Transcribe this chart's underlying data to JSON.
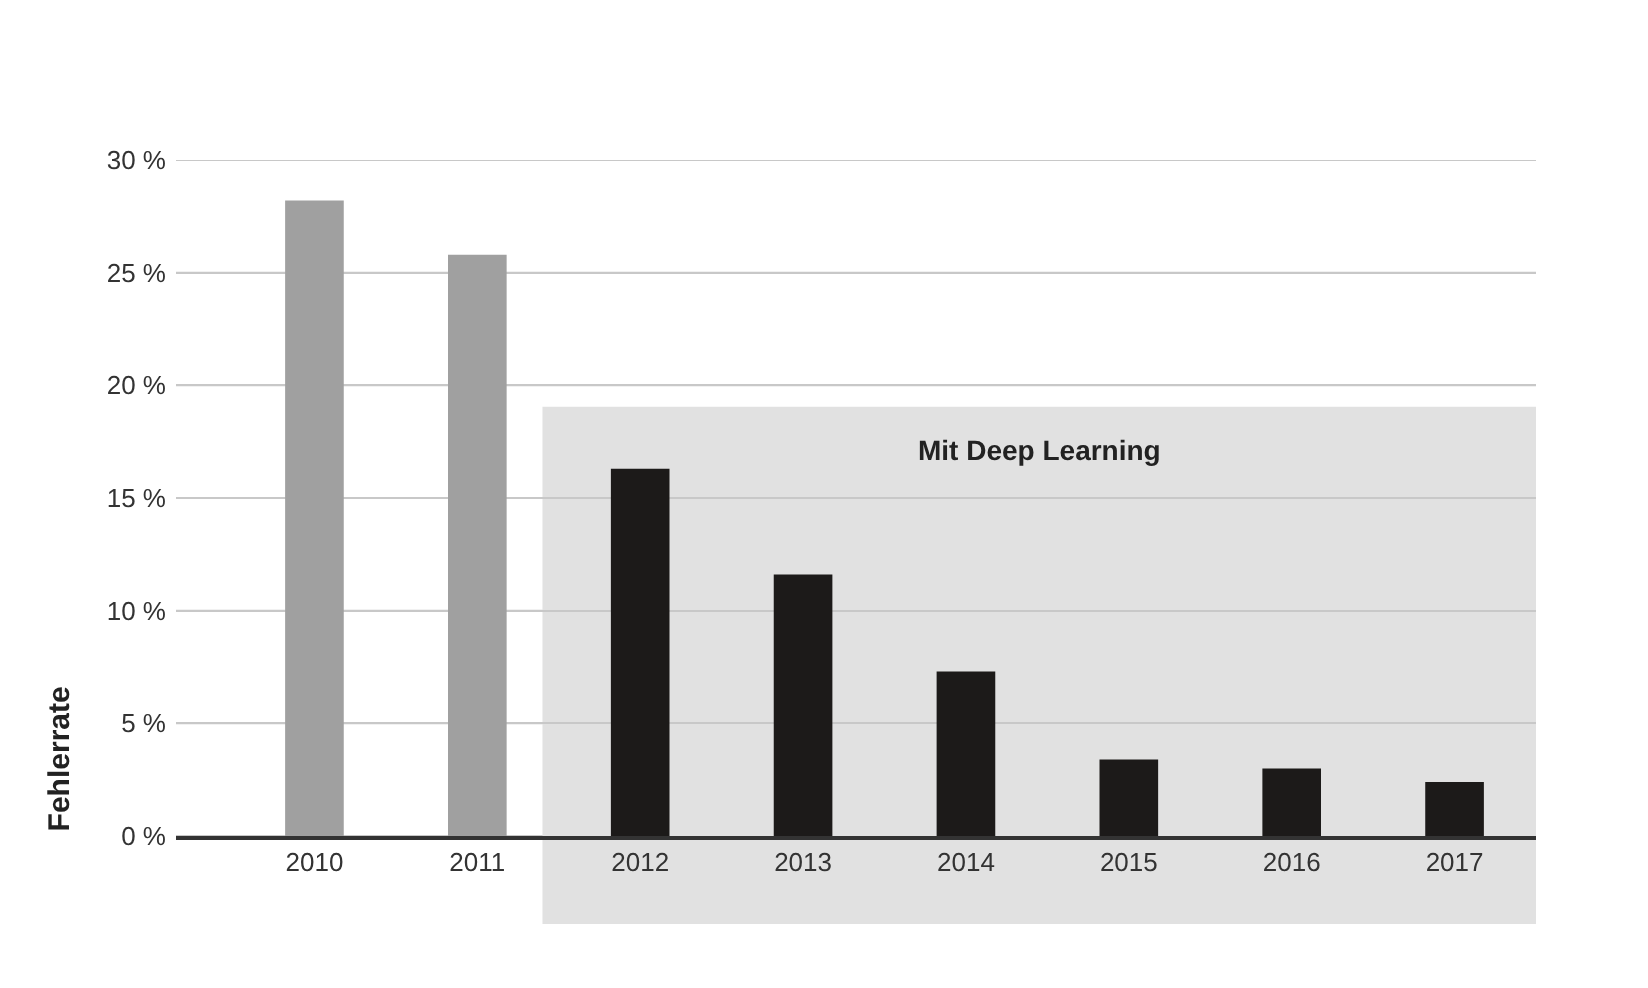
{
  "chart_data": {
    "type": "bar",
    "ylabel": "Fehlerrate",
    "categories": [
      "2010",
      "2011",
      "2012",
      "2013",
      "2014",
      "2015",
      "2016",
      "2017"
    ],
    "values": [
      28.2,
      25.8,
      16.3,
      11.6,
      7.3,
      3.4,
      3.0,
      2.4
    ],
    "colors": [
      "#a0a0a0",
      "#a0a0a0",
      "#1c1a19",
      "#1c1a19",
      "#1c1a19",
      "#1c1a19",
      "#1c1a19",
      "#1c1a19"
    ],
    "ylim": [
      0,
      30
    ],
    "yticks": [
      {
        "value": 0,
        "label": "0 %"
      },
      {
        "value": 5,
        "label": "5 %"
      },
      {
        "value": 10,
        "label": "10 %"
      },
      {
        "value": 15,
        "label": "15 %"
      },
      {
        "value": 20,
        "label": "20 %"
      },
      {
        "value": 25,
        "label": "25 %"
      },
      {
        "value": 30,
        "label": "30 %"
      }
    ],
    "bands": [
      {
        "axis": "x",
        "from": "2012",
        "to": "2017",
        "label": "Mit Deep Learning",
        "color": "#e1e1e1"
      }
    ],
    "grid": "y"
  }
}
